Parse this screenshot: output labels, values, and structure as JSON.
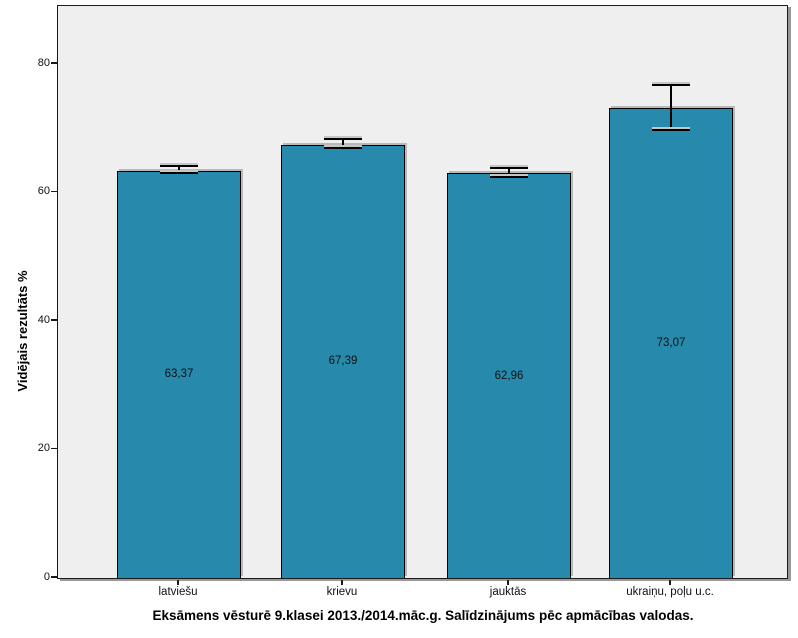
{
  "chart_data": {
    "type": "bar",
    "title": "Eksāmens vēsturē 9.klasei 2013./2014.māc.g. Salīdzinājums pēc apmācības valodas.",
    "ylabel": "Vidējais rezultāts %",
    "categories": [
      "latviešu",
      "krievu",
      "jauktās",
      "ukraiņu, poļu u.c."
    ],
    "values": [
      63.37,
      67.39,
      62.96,
      73.07
    ],
    "value_labels": [
      "63,37",
      "67,39",
      "62,96",
      "73,07"
    ],
    "error_low": [
      62.8,
      66.7,
      62.2,
      69.6
    ],
    "error_high": [
      63.9,
      68.2,
      63.7,
      76.6
    ],
    "yticks": [
      0,
      20,
      40,
      60,
      80
    ],
    "ylim": [
      0,
      89
    ],
    "grid": false,
    "legend": "none",
    "bar_color": "#2789AB",
    "bar_border_color": "#000000",
    "plot_bg_color": "#EFEFEF",
    "page_bg_color": "#FFFFFF"
  }
}
